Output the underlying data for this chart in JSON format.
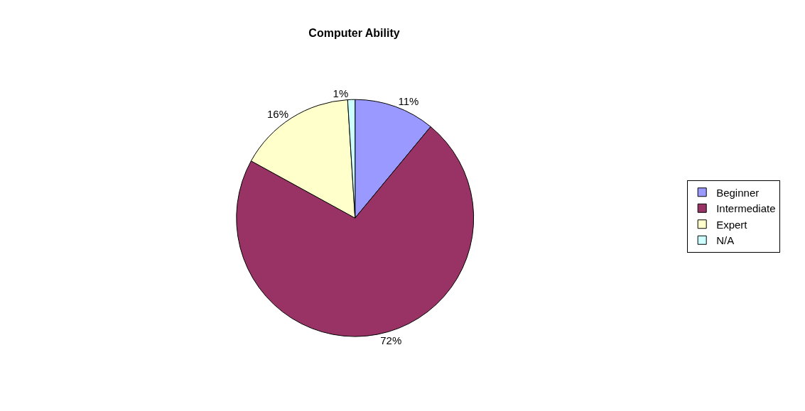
{
  "chart_data": {
    "type": "pie",
    "title": "Computer Ability",
    "categories": [
      "Beginner",
      "Intermediate",
      "Expert",
      "N/A"
    ],
    "values": [
      11,
      72,
      16,
      1
    ],
    "colors": [
      "#9999ff",
      "#993366",
      "#ffffcc",
      "#ccffff"
    ],
    "value_labels": [
      "11%",
      "72%",
      "16%",
      "1%"
    ],
    "legend": "right"
  }
}
